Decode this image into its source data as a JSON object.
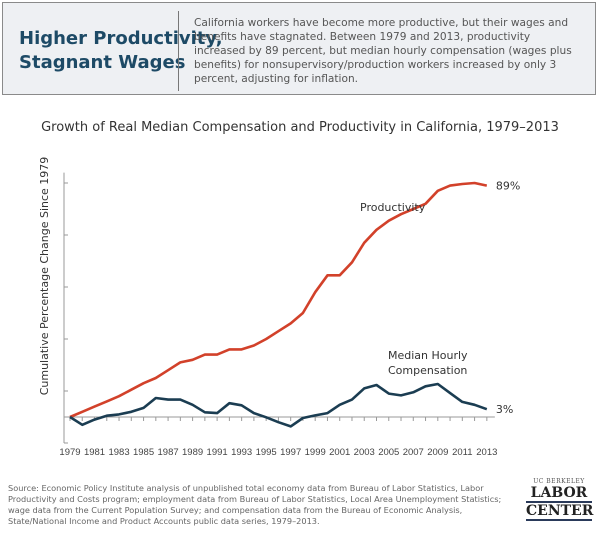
{
  "header": {
    "title_line1": "Higher Productivity,",
    "title_line2": "Stagnant Wages",
    "description": "California workers have become more productive, but their wages and benefits have stagnated. Between 1979 and 2013, productivity increased by 89 percent, but median hourly compensation (wages plus benefits) for nonsupervisory/production workers increased by only 3 percent, adjusting for inflation."
  },
  "chart_data": {
    "type": "line",
    "title": "Growth of Real Median Compensation and Productivity in California, 1979–2013",
    "xlabel": "",
    "ylabel": "Cumulative Percentage Change Since 1979",
    "x": [
      1979,
      1980,
      1981,
      1982,
      1983,
      1984,
      1985,
      1986,
      1987,
      1988,
      1989,
      1990,
      1991,
      1992,
      1993,
      1994,
      1995,
      1996,
      1997,
      1998,
      1999,
      2000,
      2001,
      2002,
      2003,
      2004,
      2005,
      2006,
      2007,
      2008,
      2009,
      2010,
      2011,
      2012,
      2013
    ],
    "x_tick_labels": [
      "1979",
      "1981",
      "1983",
      "1985",
      "1987",
      "1989",
      "1991",
      "1993",
      "1995",
      "1997",
      "1999",
      "2001",
      "2003",
      "2005",
      "2007",
      "2009",
      "2011",
      "2013"
    ],
    "ylim": [
      -10,
      94
    ],
    "y_ticks": [
      -10,
      10,
      30,
      50,
      70,
      90
    ],
    "y_tick_labels_shown": false,
    "grid": false,
    "series": [
      {
        "name": "Productivity",
        "color": "#d2412a",
        "end_label": "89%",
        "values": [
          0,
          2,
          4,
          6,
          8,
          10.5,
          13,
          15,
          18,
          21,
          22,
          24,
          24,
          26,
          26,
          27.5,
          30,
          33,
          36,
          40,
          48,
          54.5,
          54.5,
          59.5,
          67,
          72,
          75.5,
          78,
          80,
          82,
          87,
          89,
          89.6,
          90,
          89
        ]
      },
      {
        "name": "Median Hourly Compensation",
        "name_line1": "Median Hourly",
        "name_line2": "Compensation",
        "color": "#1b3d52",
        "end_label": "3%",
        "values": [
          0,
          -3,
          -1,
          0.5,
          1,
          2,
          3.5,
          7.3,
          6.7,
          6.7,
          4.7,
          1.8,
          1.5,
          5.3,
          4.5,
          1.5,
          -0.1,
          -2,
          -3.6,
          -0.4,
          0.6,
          1.5,
          4.7,
          6.7,
          11,
          12.3,
          9,
          8.3,
          9.5,
          11.8,
          12.7,
          9.2,
          5.8,
          4.7,
          3
        ]
      }
    ]
  },
  "footer": {
    "source": "Source: Economic Policy Institute analysis of unpublished total economy data from Bureau of Labor Statistics, Labor Productivity and Costs program; employment data from Bureau of Labor Statistics, Local Area Unemployment Statistics; wage data from the Current Population Survey; and compensation data from the Bureau of Economic Analysis, State/National Income and Product Accounts public data series, 1979–2013.",
    "logo_line1": "UC BERKELEY",
    "logo_line2": "LABOR",
    "logo_line3": "CENTER"
  }
}
